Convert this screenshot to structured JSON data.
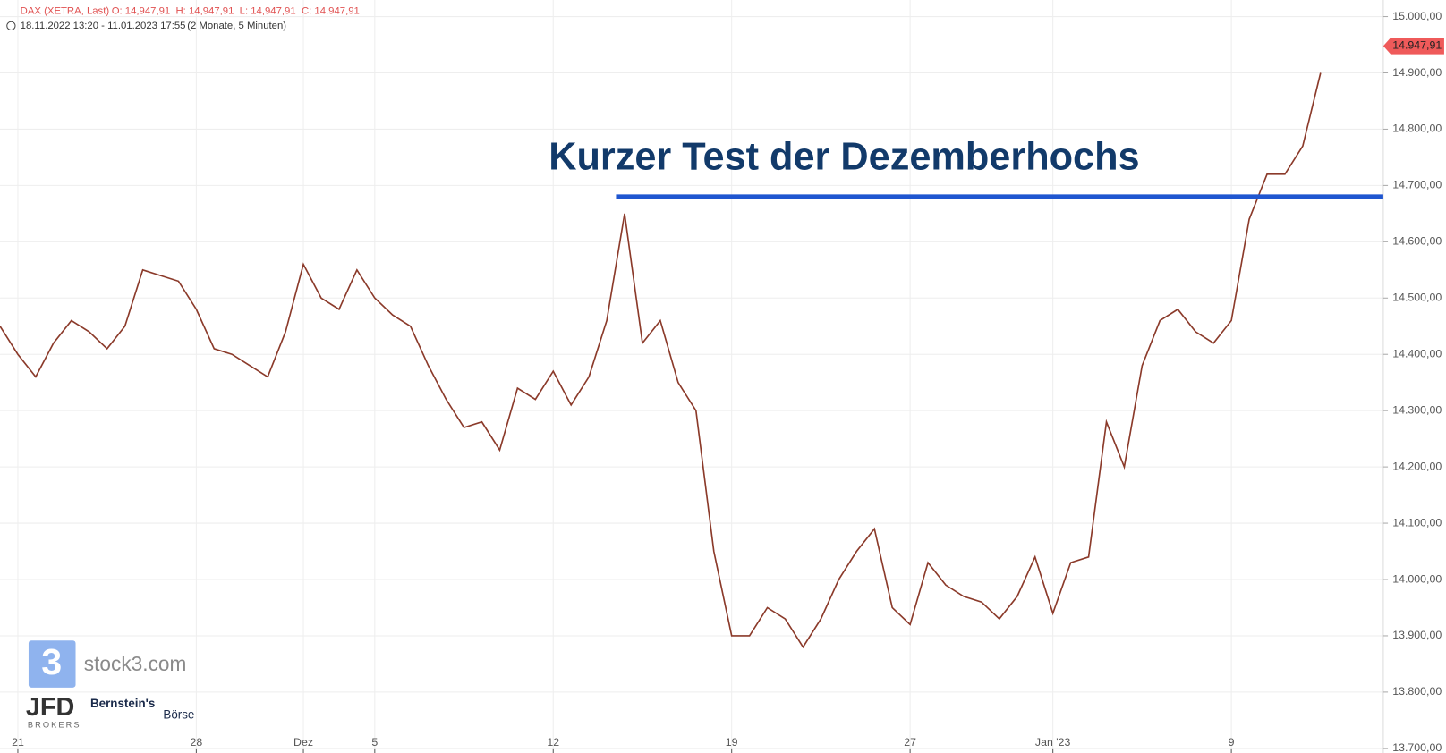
{
  "header": {
    "instrument": "DAX (XETRA, Last)",
    "ohlc": "O: 14,947,91  H: 14,947,91  L: 14,947,91  C: 14,947,91",
    "range": "18.11.2022 13:20 - 11.01.2023 17:55",
    "period": "(2 Monate, 5 Minuten)"
  },
  "logos": {
    "stock3": "stock3.com",
    "jfd": "JFD",
    "brokers": "BROKERS",
    "bernstein": "Bernstein's",
    "boerse": "Börse"
  },
  "chart_data": {
    "type": "line",
    "annotation": "Kurzer Test der Dezemberhochs",
    "hline": 14680,
    "hline_color": "#1f56d0",
    "last": {
      "value": 14947.91,
      "label": "14.947,91"
    },
    "categories": [
      null,
      "21",
      null,
      null,
      null,
      null,
      null,
      null,
      null,
      null,
      null,
      "28",
      null,
      null,
      null,
      null,
      null,
      "Dez",
      null,
      null,
      null,
      "5",
      null,
      null,
      null,
      null,
      null,
      null,
      null,
      null,
      null,
      "12",
      null,
      null,
      null,
      null,
      null,
      null,
      null,
      null,
      null,
      "19",
      null,
      null,
      null,
      null,
      null,
      null,
      null,
      null,
      null,
      "27",
      null,
      null,
      null,
      null,
      null,
      null,
      null,
      "Jan '23",
      null,
      null,
      null,
      null,
      null,
      null,
      null,
      null,
      null,
      "9",
      null,
      null,
      null,
      null,
      null
    ],
    "series": [
      {
        "name": "DAX",
        "color": "#8b3a2a",
        "values": [
          14450,
          14400,
          14360,
          14420,
          14460,
          14440,
          14410,
          14450,
          14550,
          14540,
          14530,
          14480,
          14410,
          14400,
          14380,
          14360,
          14440,
          14560,
          14500,
          14480,
          14550,
          14500,
          14470,
          14450,
          14380,
          14320,
          14270,
          14280,
          14230,
          14340,
          14320,
          14370,
          14310,
          14360,
          14460,
          14650,
          14420,
          14460,
          14350,
          14300,
          14050,
          13900,
          13900,
          13950,
          13930,
          13880,
          13930,
          14000,
          14050,
          14090,
          13950,
          13920,
          14030,
          13990,
          13970,
          13960,
          13930,
          13970,
          14040,
          13940,
          14030,
          14040,
          14280,
          14200,
          14380,
          14460,
          14480,
          14440,
          14420,
          14460,
          14640,
          14720,
          14720,
          14770,
          14900
        ]
      }
    ],
    "ylim": [
      13700,
      15000
    ],
    "yticks": [
      {
        "value": 13700,
        "label": "13.700,00"
      },
      {
        "value": 13800,
        "label": "13.800,00"
      },
      {
        "value": 13900,
        "label": "13.900,00"
      },
      {
        "value": 14000,
        "label": "14.000,00"
      },
      {
        "value": 14100,
        "label": "14.100,00"
      },
      {
        "value": 14200,
        "label": "14.200,00"
      },
      {
        "value": 14300,
        "label": "14.300,00"
      },
      {
        "value": 14400,
        "label": "14.400,00"
      },
      {
        "value": 14500,
        "label": "14.500,00"
      },
      {
        "value": 14600,
        "label": "14.600,00"
      },
      {
        "value": 14700,
        "label": "14.700,00"
      },
      {
        "value": 14800,
        "label": "14.800,00"
      },
      {
        "value": 14900,
        "label": "14.900,00"
      },
      {
        "value": 15000,
        "label": "15.000,00"
      }
    ],
    "grid": true
  }
}
